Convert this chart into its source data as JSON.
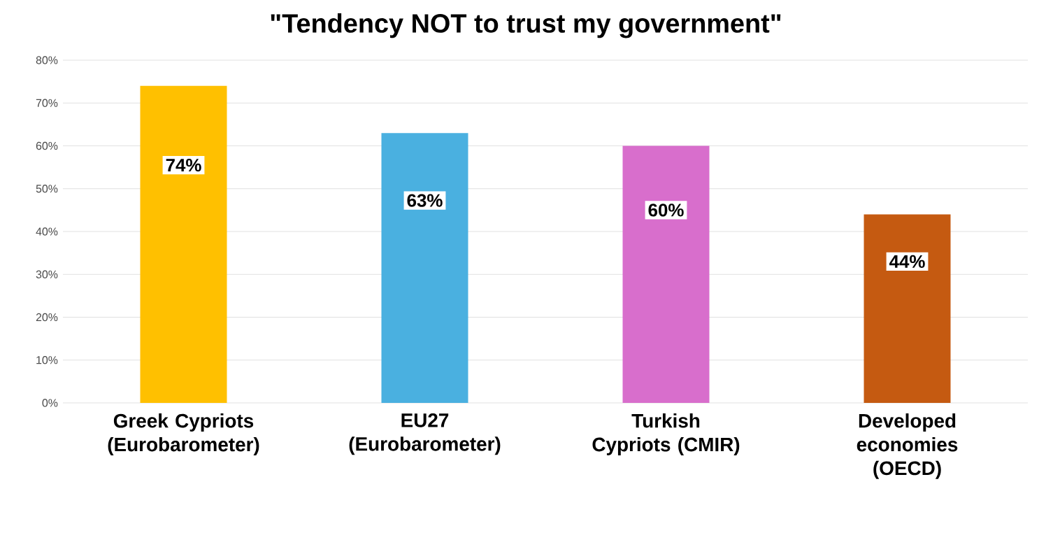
{
  "chart_data": {
    "type": "bar",
    "title": "\"Tendency NOT to trust my government\"",
    "categories": [
      "Greek Cypriots (Eurobarometer)",
      "EU27 (Eurobarometer)",
      "Turkish Cypriots (CMIR)",
      "Developed economies (OECD)"
    ],
    "values": [
      74,
      63,
      60,
      44
    ],
    "value_labels": [
      "74%",
      "63%",
      "60%",
      "44%"
    ],
    "colors": [
      "#ffc000",
      "#4ab0e0",
      "#d86ecc",
      "#c55a11"
    ],
    "ylim": [
      0,
      80
    ],
    "yticks": [
      {
        "value": 0,
        "label": "0%"
      },
      {
        "value": 10,
        "label": "10%"
      },
      {
        "value": 20,
        "label": "20%"
      },
      {
        "value": 30,
        "label": "30%"
      },
      {
        "value": 40,
        "label": "40%"
      },
      {
        "value": 50,
        "label": "50%"
      },
      {
        "value": 60,
        "label": "60%"
      },
      {
        "value": 70,
        "label": "70%"
      },
      {
        "value": 80,
        "label": "80%"
      }
    ],
    "grid": "y"
  }
}
